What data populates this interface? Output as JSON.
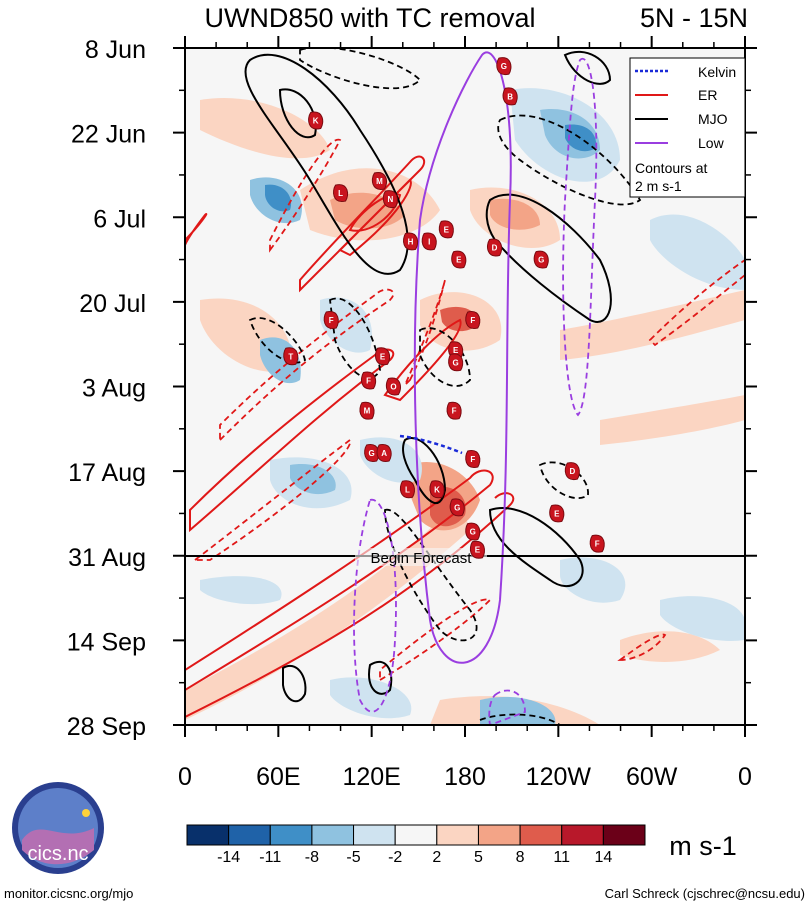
{
  "chart_data": {
    "type": "heatmap",
    "title": "UWND850 with TC removal",
    "subtitle": "5N - 15N",
    "x_tick_labels": [
      "0",
      "60E",
      "120E",
      "180",
      "120W",
      "60W",
      "0"
    ],
    "y_tick_labels": [
      "8 Jun",
      "22 Jun",
      "6 Jul",
      "20 Jul",
      "3 Aug",
      "17 Aug",
      "31 Aug",
      "14 Sep",
      "28 Sep"
    ],
    "xlim": [
      0,
      360
    ],
    "ylim_days": [
      0,
      112
    ],
    "forecast_line_day": 84,
    "forecast_label": "Begin Forecast",
    "legend": [
      {
        "name": "Kelvin",
        "color": "#1a2bd8",
        "style": "dotted"
      },
      {
        "name": "ER",
        "color": "#e01818",
        "style": "solid"
      },
      {
        "name": "MJO",
        "color": "#000000",
        "style": "solid"
      },
      {
        "name": "Low",
        "color": "#9a3ee0",
        "style": "solid"
      }
    ],
    "legend_note": [
      "Contours at",
      "2 m s-1"
    ],
    "colorbar": {
      "unit": "m s-1",
      "labels": [
        "-14",
        "-11",
        "-8",
        "-5",
        "-2",
        "2",
        "5",
        "8",
        "11",
        "14"
      ],
      "colors": [
        "#08306b",
        "#1f62a8",
        "#3f8fc7",
        "#8fc2e0",
        "#cfe3f0",
        "#f6f6f6",
        "#fbd5c2",
        "#f3a487",
        "#df5c4c",
        "#b8182a",
        "#6b0018"
      ]
    },
    "cyclones": [
      {
        "label": "G",
        "lon": 205,
        "day": 3
      },
      {
        "label": "B",
        "lon": 209,
        "day": 8
      },
      {
        "label": "K",
        "lon": 84,
        "day": 12
      },
      {
        "label": "L",
        "lon": 100,
        "day": 24
      },
      {
        "label": "M",
        "lon": 125,
        "day": 22
      },
      {
        "label": "N",
        "lon": 132,
        "day": 25
      },
      {
        "label": "E",
        "lon": 168,
        "day": 30
      },
      {
        "label": "H",
        "lon": 145,
        "day": 32
      },
      {
        "label": "I",
        "lon": 157,
        "day": 32
      },
      {
        "label": "E",
        "lon": 176,
        "day": 35
      },
      {
        "label": "D",
        "lon": 199,
        "day": 33
      },
      {
        "label": "G",
        "lon": 229,
        "day": 35
      },
      {
        "label": "F",
        "lon": 185,
        "day": 45
      },
      {
        "label": "F",
        "lon": 94,
        "day": 45
      },
      {
        "label": "T",
        "lon": 68,
        "day": 51
      },
      {
        "label": "E",
        "lon": 174,
        "day": 50
      },
      {
        "label": "G",
        "lon": 174,
        "day": 52
      },
      {
        "label": "E",
        "lon": 127,
        "day": 51
      },
      {
        "label": "F",
        "lon": 118,
        "day": 55
      },
      {
        "label": "O",
        "lon": 134,
        "day": 56
      },
      {
        "label": "F",
        "lon": 173,
        "day": 60
      },
      {
        "label": "M",
        "lon": 117,
        "day": 60
      },
      {
        "label": "G",
        "lon": 120,
        "day": 67
      },
      {
        "label": "A",
        "lon": 128,
        "day": 67
      },
      {
        "label": "F",
        "lon": 185,
        "day": 68
      },
      {
        "label": "D",
        "lon": 249,
        "day": 70
      },
      {
        "label": "L",
        "lon": 143,
        "day": 73
      },
      {
        "label": "K",
        "lon": 162,
        "day": 73
      },
      {
        "label": "G",
        "lon": 175,
        "day": 76
      },
      {
        "label": "E",
        "lon": 239,
        "day": 77
      },
      {
        "label": "F",
        "lon": 265,
        "day": 82
      },
      {
        "label": "G",
        "lon": 185,
        "day": 80
      },
      {
        "label": "E",
        "lon": 188,
        "day": 83
      }
    ]
  },
  "footer": {
    "logo_text": "cics.nc",
    "left_url": "monitor.cicsnc.org/mjo",
    "right_credit": "Carl Schreck (cjschrec@ncsu.edu)"
  }
}
